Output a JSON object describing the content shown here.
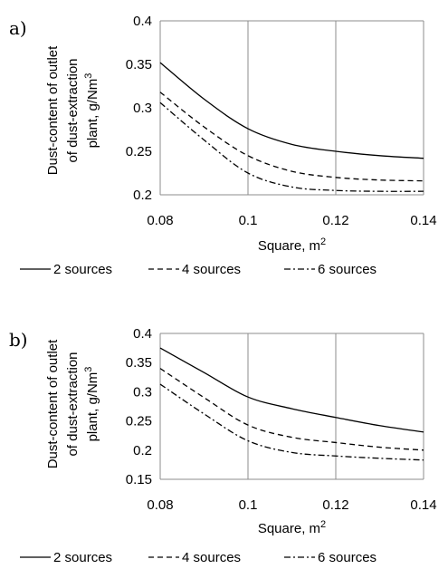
{
  "chart_data": [
    {
      "type": "line",
      "panel_label": "a)",
      "xlabel": "Square, m²",
      "ylabel_lines": [
        "Dust-content of outlet",
        "of dust-extraction",
        "plant, g/Nm³"
      ],
      "xlim": [
        0.08,
        0.14
      ],
      "ylim": [
        0.2,
        0.4
      ],
      "x_ticks": [
        "0.08",
        "0.1",
        "0.12",
        "0.14"
      ],
      "y_ticks": [
        "0.2",
        "0.25",
        "0.3",
        "0.35",
        "0.4"
      ],
      "grid": "vertical",
      "legend_position": "bottom",
      "x": [
        0.08,
        0.09,
        0.1,
        0.11,
        0.12,
        0.13,
        0.14
      ],
      "series": [
        {
          "name": "2 sources",
          "dash": "solid",
          "values": [
            0.352,
            0.31,
            0.276,
            0.258,
            0.25,
            0.245,
            0.242
          ]
        },
        {
          "name": "4 sources",
          "dash": "dashed",
          "values": [
            0.318,
            0.278,
            0.245,
            0.227,
            0.22,
            0.217,
            0.216
          ]
        },
        {
          "name": "6 sources",
          "dash": "dashdot",
          "values": [
            0.306,
            0.263,
            0.225,
            0.209,
            0.205,
            0.204,
            0.204
          ]
        }
      ]
    },
    {
      "type": "line",
      "panel_label": "b)",
      "xlabel": "Square, m²",
      "ylabel_lines": [
        "Dust-content of outlet",
        "of dust-extraction",
        "plant, g/Nm³"
      ],
      "xlim": [
        0.08,
        0.14
      ],
      "ylim": [
        0.15,
        0.4
      ],
      "x_ticks": [
        "0.08",
        "0.1",
        "0.12",
        "0.14"
      ],
      "y_ticks": [
        "0.15",
        "0.2",
        "0.25",
        "0.3",
        "0.35",
        "0.4"
      ],
      "grid": "vertical",
      "legend_position": "bottom",
      "x": [
        0.08,
        0.09,
        0.1,
        0.11,
        0.12,
        0.13,
        0.14
      ],
      "series": [
        {
          "name": "2 sources",
          "dash": "solid",
          "values": [
            0.375,
            0.333,
            0.291,
            0.271,
            0.256,
            0.242,
            0.231
          ]
        },
        {
          "name": "4 sources",
          "dash": "dashed",
          "values": [
            0.34,
            0.29,
            0.243,
            0.222,
            0.213,
            0.205,
            0.2
          ]
        },
        {
          "name": "6 sources",
          "dash": "dashdot",
          "values": [
            0.313,
            0.262,
            0.216,
            0.196,
            0.19,
            0.186,
            0.183
          ]
        }
      ]
    }
  ]
}
